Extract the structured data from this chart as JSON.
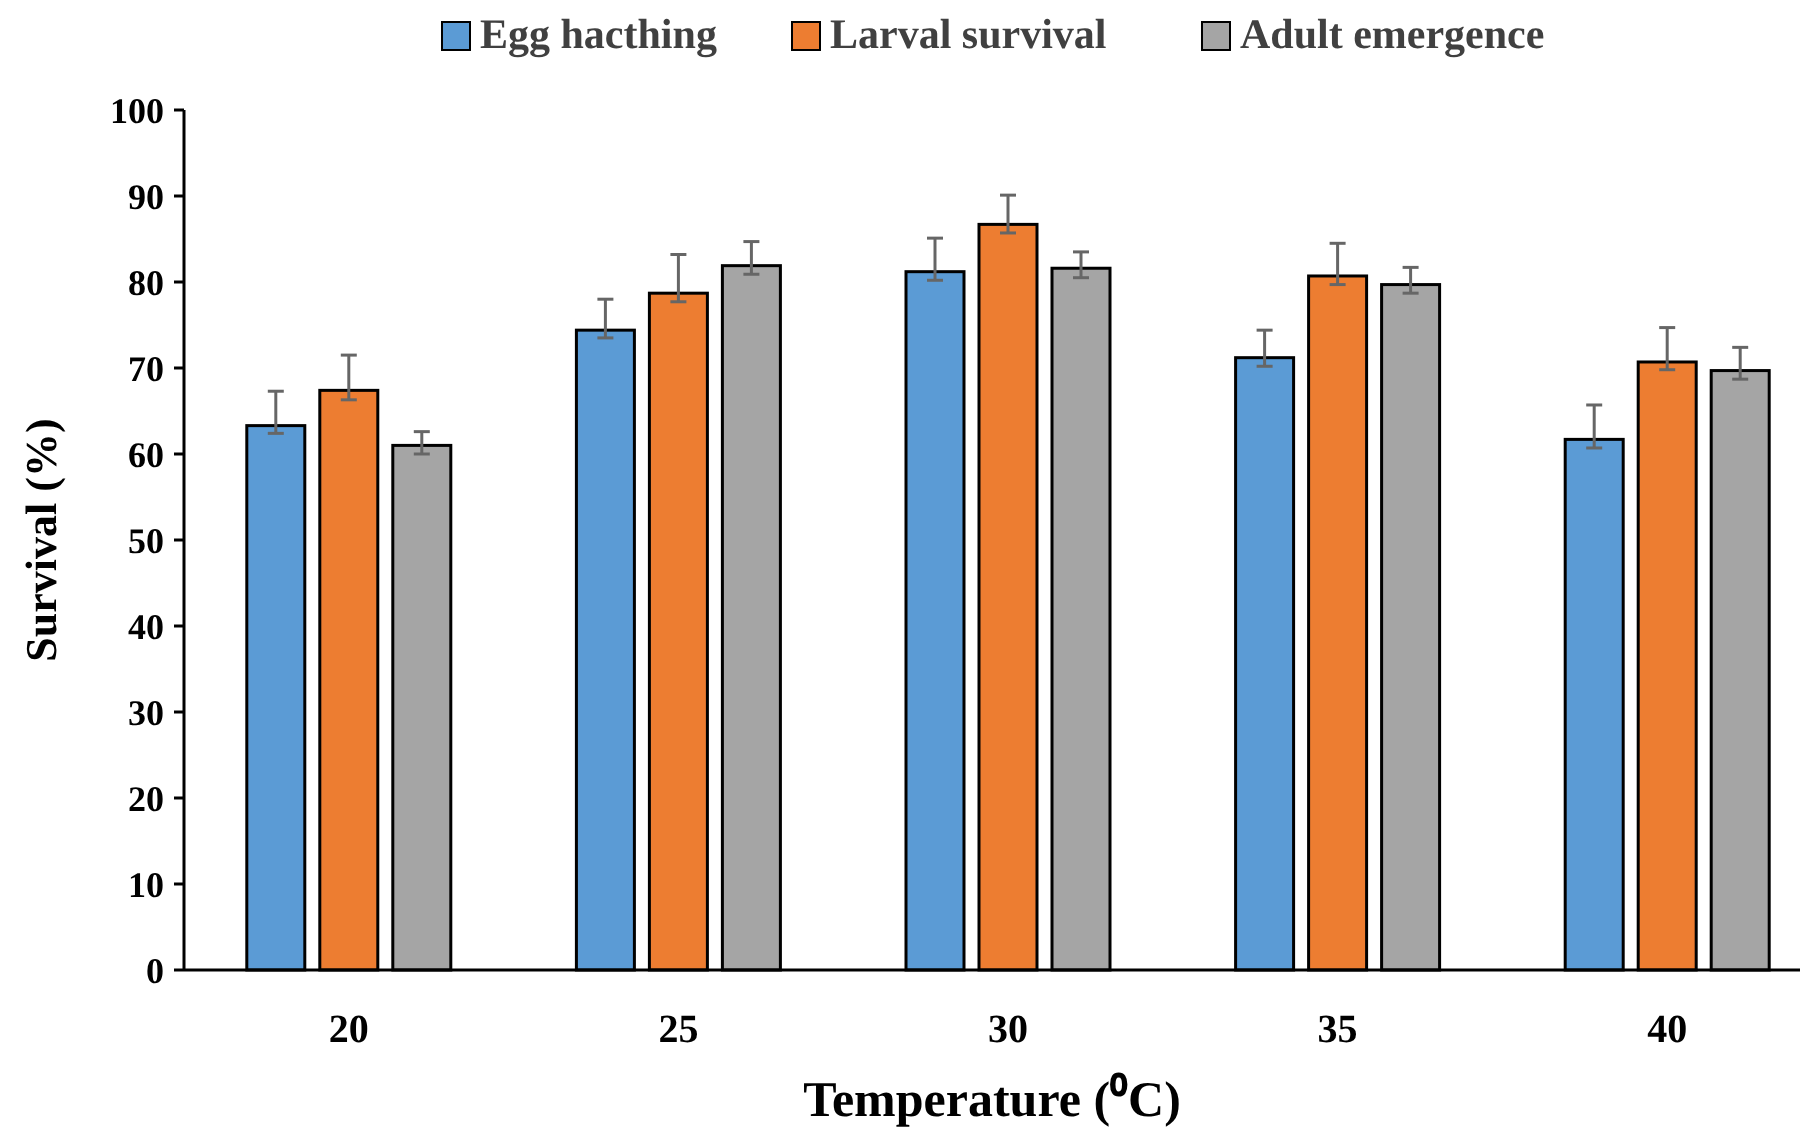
{
  "chart_data": {
    "type": "bar",
    "xlabel": "Temperature (⁰C)",
    "ylabel": "Survival (%)",
    "categories": [
      "20",
      "25",
      "30",
      "35",
      "40"
    ],
    "series": [
      {
        "name": "Egg hacthing",
        "color": "#5b9bd5",
        "values": [
          63.3,
          74.4,
          81.2,
          71.2,
          61.7
        ],
        "errors": [
          [
            62.4,
            67.3
          ],
          [
            73.5,
            78.0
          ],
          [
            80.2,
            85.1
          ],
          [
            70.2,
            74.4
          ],
          [
            60.7,
            65.7
          ]
        ]
      },
      {
        "name": "Larval survival",
        "color": "#ed7d31",
        "values": [
          67.4,
          78.7,
          86.7,
          80.7,
          70.7
        ],
        "errors": [
          [
            66.3,
            71.5
          ],
          [
            77.7,
            83.2
          ],
          [
            85.7,
            90.1
          ],
          [
            79.7,
            84.5
          ],
          [
            69.8,
            74.7
          ]
        ]
      },
      {
        "name": "Adult emergence",
        "color": "#a5a5a5",
        "values": [
          61.0,
          81.9,
          81.6,
          79.7,
          69.7
        ],
        "errors": [
          [
            60.0,
            62.6
          ],
          [
            80.9,
            84.7
          ],
          [
            80.5,
            83.5
          ],
          [
            78.7,
            81.7
          ],
          [
            68.7,
            72.4
          ]
        ]
      }
    ],
    "ylim": [
      0,
      100
    ],
    "yticks": [
      0,
      10,
      20,
      30,
      40,
      50,
      60,
      70,
      80,
      90,
      100
    ],
    "grid": false,
    "legend": "top"
  }
}
